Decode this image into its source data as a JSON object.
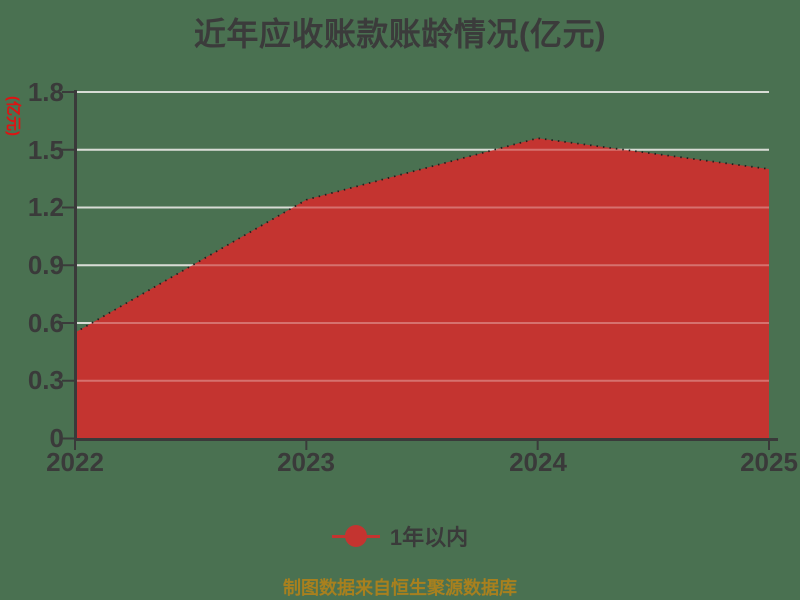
{
  "title": "近年应收账款账龄情况(亿元)",
  "source_note": "制图数据来自恒生聚源数据库",
  "legend": {
    "label": "1年以内"
  },
  "colors": {
    "background": "#4a7151",
    "area": "#c43430",
    "area_edge_dots": "#202020",
    "grid": "#c7cdc3",
    "axis": "#3a3a3a",
    "tick_text": "#3a3a3a",
    "title_text": "#3b3b3b",
    "y_axis_title_text": "#e01212",
    "source_text": "#a8801e"
  },
  "chart_data": {
    "type": "area",
    "title": "近年应收账款账龄情况(亿元)",
    "ylabel": "(亿元)",
    "xlabel": "",
    "x": [
      "2022",
      "2023",
      "2024",
      "2025"
    ],
    "series": [
      {
        "name": "1年以内",
        "values": [
          0.55,
          1.24,
          1.56,
          1.4
        ]
      }
    ],
    "ylim": [
      0,
      1.8
    ],
    "yticks": [
      "0",
      "0.3",
      "0.6",
      "0.9",
      "1.2",
      "1.5",
      "1.8"
    ],
    "grid": true,
    "legend_position": "bottom"
  }
}
